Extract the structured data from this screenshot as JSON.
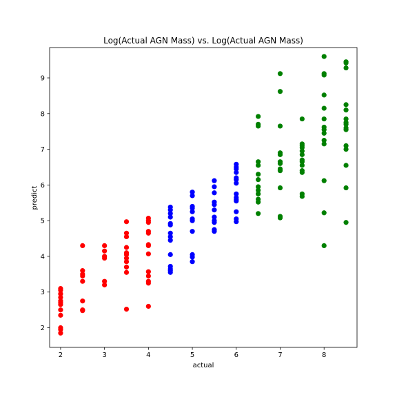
{
  "chart_data": {
    "type": "scatter",
    "title": "Log(Actual AGN Mass) vs. Log(Actual AGN Mass)",
    "xlabel": "actual",
    "ylabel": "predict",
    "xlim": [
      1.75,
      8.75
    ],
    "ylim": [
      1.45,
      9.85
    ],
    "xticks": [
      2,
      3,
      4,
      5,
      6,
      7,
      8
    ],
    "yticks": [
      2,
      3,
      4,
      5,
      6,
      7,
      8,
      9
    ],
    "grid": false,
    "series": [
      {
        "color": "#ff0000",
        "points": [
          [
            2,
            3.1
          ],
          [
            2,
            3.05
          ],
          [
            2,
            2.95
          ],
          [
            2,
            2.85
          ],
          [
            2,
            2.75
          ],
          [
            2,
            2.7
          ],
          [
            2,
            2.65
          ],
          [
            2,
            2.5
          ],
          [
            2,
            2.35
          ],
          [
            2,
            2.0
          ],
          [
            2,
            1.95
          ],
          [
            2,
            1.85
          ],
          [
            2.5,
            4.3
          ],
          [
            2.5,
            3.6
          ],
          [
            2.5,
            3.5
          ],
          [
            2.5,
            3.45
          ],
          [
            2.5,
            3.3
          ],
          [
            2.5,
            2.75
          ],
          [
            2.5,
            2.5
          ],
          [
            2.5,
            2.48
          ],
          [
            3,
            4.3
          ],
          [
            3,
            4.15
          ],
          [
            3,
            4.0
          ],
          [
            3,
            3.95
          ],
          [
            3,
            3.3
          ],
          [
            3,
            3.2
          ],
          [
            3.5,
            4.97
          ],
          [
            3.5,
            4.65
          ],
          [
            3.5,
            4.55
          ],
          [
            3.5,
            4.25
          ],
          [
            3.5,
            4.1
          ],
          [
            3.5,
            4.05
          ],
          [
            3.5,
            3.95
          ],
          [
            3.5,
            3.85
          ],
          [
            3.5,
            3.7
          ],
          [
            3.5,
            3.55
          ],
          [
            3.5,
            2.52
          ],
          [
            4,
            5.07
          ],
          [
            4,
            5.0
          ],
          [
            4,
            4.95
          ],
          [
            4,
            4.7
          ],
          [
            4,
            4.65
          ],
          [
            4,
            4.33
          ],
          [
            4,
            4.3
          ],
          [
            4,
            4.07
          ],
          [
            4,
            3.57
          ],
          [
            4,
            3.45
          ],
          [
            4,
            3.3
          ],
          [
            4,
            3.25
          ],
          [
            4,
            2.6
          ]
        ]
      },
      {
        "color": "#0000ff",
        "points": [
          [
            4.5,
            5.38
          ],
          [
            4.5,
            5.3
          ],
          [
            4.5,
            5.2
          ],
          [
            4.5,
            5.1
          ],
          [
            4.5,
            4.92
          ],
          [
            4.5,
            4.88
          ],
          [
            4.5,
            4.65
          ],
          [
            4.5,
            4.55
          ],
          [
            4.5,
            4.45
          ],
          [
            4.5,
            4.05
          ],
          [
            4.5,
            3.72
          ],
          [
            4.5,
            3.65
          ],
          [
            4.5,
            3.6
          ],
          [
            4.5,
            3.55
          ],
          [
            5,
            5.8
          ],
          [
            5,
            5.7
          ],
          [
            5,
            5.4
          ],
          [
            5,
            5.35
          ],
          [
            5,
            5.25
          ],
          [
            5,
            5.05
          ],
          [
            5,
            5.0
          ],
          [
            5,
            4.7
          ],
          [
            5,
            4.05
          ],
          [
            5,
            3.98
          ],
          [
            5,
            3.85
          ],
          [
            5.5,
            6.12
          ],
          [
            5.5,
            5.95
          ],
          [
            5.5,
            5.78
          ],
          [
            5.5,
            5.52
          ],
          [
            5.5,
            5.45
          ],
          [
            5.5,
            5.3
          ],
          [
            5.5,
            5.1
          ],
          [
            5.5,
            5.0
          ],
          [
            5.5,
            4.95
          ],
          [
            5.5,
            4.75
          ],
          [
            5.5,
            4.7
          ],
          [
            6,
            6.58
          ],
          [
            6,
            6.5
          ],
          [
            6,
            6.45
          ],
          [
            6,
            6.35
          ],
          [
            6,
            6.2
          ],
          [
            6,
            6.15
          ],
          [
            6,
            6.05
          ],
          [
            6,
            5.75
          ],
          [
            6,
            5.65
          ],
          [
            6,
            5.6
          ],
          [
            6,
            5.55
          ],
          [
            6,
            5.25
          ],
          [
            6,
            5.05
          ],
          [
            6,
            4.97
          ]
        ]
      },
      {
        "color": "#008000",
        "points": [
          [
            6.5,
            7.92
          ],
          [
            6.5,
            7.7
          ],
          [
            6.5,
            7.65
          ],
          [
            6.5,
            6.65
          ],
          [
            6.5,
            6.55
          ],
          [
            6.5,
            6.3
          ],
          [
            6.5,
            6.15
          ],
          [
            6.5,
            5.95
          ],
          [
            6.5,
            5.85
          ],
          [
            6.5,
            5.75
          ],
          [
            6.5,
            5.6
          ],
          [
            6.5,
            5.52
          ],
          [
            6.5,
            5.2
          ],
          [
            7,
            9.12
          ],
          [
            7,
            8.62
          ],
          [
            7,
            7.65
          ],
          [
            7,
            6.9
          ],
          [
            7,
            6.85
          ],
          [
            7,
            6.65
          ],
          [
            7,
            6.6
          ],
          [
            7,
            6.45
          ],
          [
            7,
            6.4
          ],
          [
            7,
            5.92
          ],
          [
            7,
            5.12
          ],
          [
            7,
            5.08
          ],
          [
            7.5,
            7.85
          ],
          [
            7.5,
            7.15
          ],
          [
            7.5,
            7.1
          ],
          [
            7.5,
            7.05
          ],
          [
            7.5,
            6.95
          ],
          [
            7.5,
            6.85
          ],
          [
            7.5,
            6.7
          ],
          [
            7.5,
            6.65
          ],
          [
            7.5,
            6.55
          ],
          [
            7.5,
            6.4
          ],
          [
            7.5,
            6.35
          ],
          [
            7.5,
            5.75
          ],
          [
            7.5,
            5.68
          ],
          [
            8,
            9.6
          ],
          [
            8,
            9.12
          ],
          [
            8,
            9.08
          ],
          [
            8,
            8.52
          ],
          [
            8,
            8.15
          ],
          [
            8,
            7.85
          ],
          [
            8,
            7.62
          ],
          [
            8,
            7.55
          ],
          [
            8,
            7.45
          ],
          [
            8,
            7.25
          ],
          [
            8,
            7.15
          ],
          [
            8,
            6.12
          ],
          [
            8,
            5.22
          ],
          [
            8,
            4.3
          ],
          [
            8.5,
            9.45
          ],
          [
            8.5,
            9.42
          ],
          [
            8.5,
            9.28
          ],
          [
            8.5,
            8.25
          ],
          [
            8.5,
            8.1
          ],
          [
            8.5,
            7.85
          ],
          [
            8.5,
            7.75
          ],
          [
            8.5,
            7.7
          ],
          [
            8.5,
            7.6
          ],
          [
            8.5,
            7.55
          ],
          [
            8.5,
            7.1
          ],
          [
            8.5,
            7.0
          ],
          [
            8.5,
            6.55
          ],
          [
            8.5,
            5.92
          ],
          [
            8.5,
            4.95
          ]
        ]
      }
    ]
  }
}
